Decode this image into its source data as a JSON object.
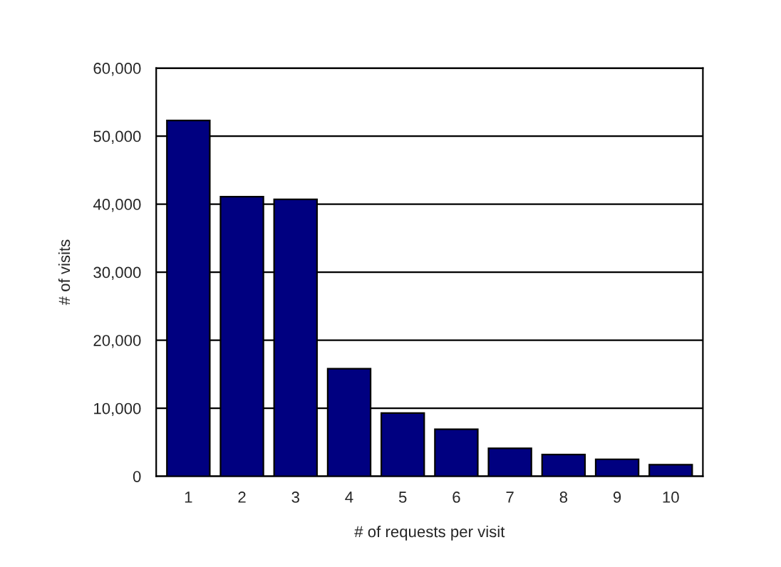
{
  "chart_data": {
    "type": "bar",
    "xlabel": "# of requests per visit",
    "ylabel": "# of visits",
    "categories": [
      "1",
      "2",
      "3",
      "4",
      "5",
      "6",
      "7",
      "8",
      "9",
      "10"
    ],
    "values": [
      52300,
      41100,
      40700,
      15800,
      9300,
      6900,
      4100,
      3200,
      2500,
      1700
    ],
    "color": "#000080",
    "ylim": [
      0,
      60000
    ],
    "yticks": [
      {
        "value": 0,
        "label": "0"
      },
      {
        "value": 10000,
        "label": "10,000"
      },
      {
        "value": 20000,
        "label": "20,000"
      },
      {
        "value": 30000,
        "label": "30,000"
      },
      {
        "value": 40000,
        "label": "40,000"
      },
      {
        "value": 50000,
        "label": "50,000"
      },
      {
        "value": 60000,
        "label": "60,000"
      }
    ],
    "grid": "y"
  }
}
